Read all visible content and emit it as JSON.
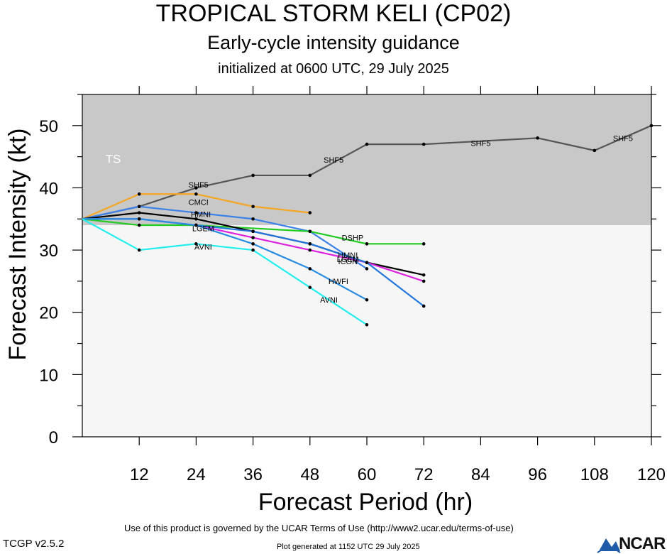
{
  "header": {
    "title": "TROPICAL STORM KELI (CP02)",
    "subtitle": "Early-cycle intensity guidance",
    "init_line": "initialized at 0600 UTC, 29 July 2025"
  },
  "footer": {
    "terms": "Use of this product is governed by the UCAR Terms of Use (http://www2.ucar.edu/terms-of-use)",
    "version": "TCGP v2.5.2",
    "generated": "Plot generated at 1152 UTC   29 July 2025",
    "logo_text": "NCAR"
  },
  "chart_data": {
    "type": "line",
    "xlabel": "Forecast Period (hr)",
    "ylabel": "Forecast Intensity (kt)",
    "xlim": [
      0,
      120
    ],
    "ylim": [
      0,
      55
    ],
    "x_ticks": [
      12,
      24,
      36,
      48,
      60,
      72,
      84,
      96,
      108,
      120
    ],
    "y_ticks": [
      0,
      10,
      20,
      30,
      40,
      50
    ],
    "bands": [
      {
        "label": "TS",
        "from": 34,
        "to": 55,
        "color": "#c8c8c8"
      },
      {
        "label": "",
        "from": 0,
        "to": 34,
        "color": "#f6f6f6"
      }
    ],
    "series": [
      {
        "name": "SHF5",
        "color": "#555555",
        "x": [
          0,
          12,
          24,
          36,
          48,
          60,
          72,
          96,
          108,
          120
        ],
        "values": [
          35,
          37,
          40,
          42,
          42,
          47,
          47,
          48,
          46,
          50
        ]
      },
      {
        "name": "CMCI",
        "color": "#f5a623",
        "x": [
          0,
          12,
          24,
          36,
          48
        ],
        "values": [
          35,
          39,
          39,
          37,
          36
        ]
      },
      {
        "name": "HMNI",
        "color": "#3d82e8",
        "x": [
          0,
          12,
          24,
          36,
          48,
          60
        ],
        "values": [
          35,
          37,
          36,
          35,
          33,
          27
        ]
      },
      {
        "name": "DSHP",
        "color": "#22cc22",
        "x": [
          0,
          12,
          24,
          48,
          60,
          72
        ],
        "values": [
          35,
          34,
          34,
          33,
          31,
          31
        ]
      },
      {
        "name": "LGEM",
        "color": "#000000",
        "x": [
          0,
          12,
          24,
          36,
          48,
          60,
          72
        ],
        "values": [
          35,
          36,
          35,
          33,
          31,
          28,
          26
        ]
      },
      {
        "name": "ICON",
        "color": "#dd22dd",
        "x": [
          0,
          12,
          24,
          36,
          48,
          60,
          72
        ],
        "values": [
          35,
          35,
          34,
          32,
          30,
          28,
          25
        ]
      },
      {
        "name": "",
        "color": "#2277dd",
        "x": [
          0,
          12,
          24,
          36,
          48,
          60,
          72
        ],
        "values": [
          35,
          35,
          34,
          33,
          31,
          28,
          21
        ]
      },
      {
        "name": "HWFI",
        "color": "#2a8ce0",
        "x": [
          0,
          12,
          24,
          36,
          48,
          60
        ],
        "values": [
          35,
          35,
          34,
          31,
          27,
          22
        ]
      },
      {
        "name": "AVNI",
        "color": "#22eeee",
        "x": [
          0,
          12,
          24,
          36,
          48,
          60
        ],
        "values": [
          35,
          30,
          31,
          30,
          24,
          18
        ]
      }
    ],
    "labels": [
      {
        "text": "SHF5",
        "x": 24.5,
        "y": 40.5
      },
      {
        "text": "SHF5",
        "x": 53,
        "y": 44.5
      },
      {
        "text": "SHF5",
        "x": 84,
        "y": 47.2
      },
      {
        "text": "SHF5",
        "x": 114,
        "y": 48
      },
      {
        "text": "CMCI",
        "x": 24.5,
        "y": 37.7
      },
      {
        "text": "HMNI",
        "x": 25,
        "y": 35.8
      },
      {
        "text": "DSHP",
        "x": 57,
        "y": 32
      },
      {
        "text": "HMNI",
        "x": 56,
        "y": 29.2
      },
      {
        "text": "LGEM",
        "x": 25.5,
        "y": 33.5
      },
      {
        "text": "LGEM",
        "x": 56,
        "y": 28.5
      },
      {
        "text": "ICON",
        "x": 56,
        "y": 28.2
      },
      {
        "text": "HWFI",
        "x": 54,
        "y": 25
      },
      {
        "text": "AVNI",
        "x": 25.5,
        "y": 30.5
      },
      {
        "text": "AVNI",
        "x": 52,
        "y": 22
      }
    ]
  }
}
